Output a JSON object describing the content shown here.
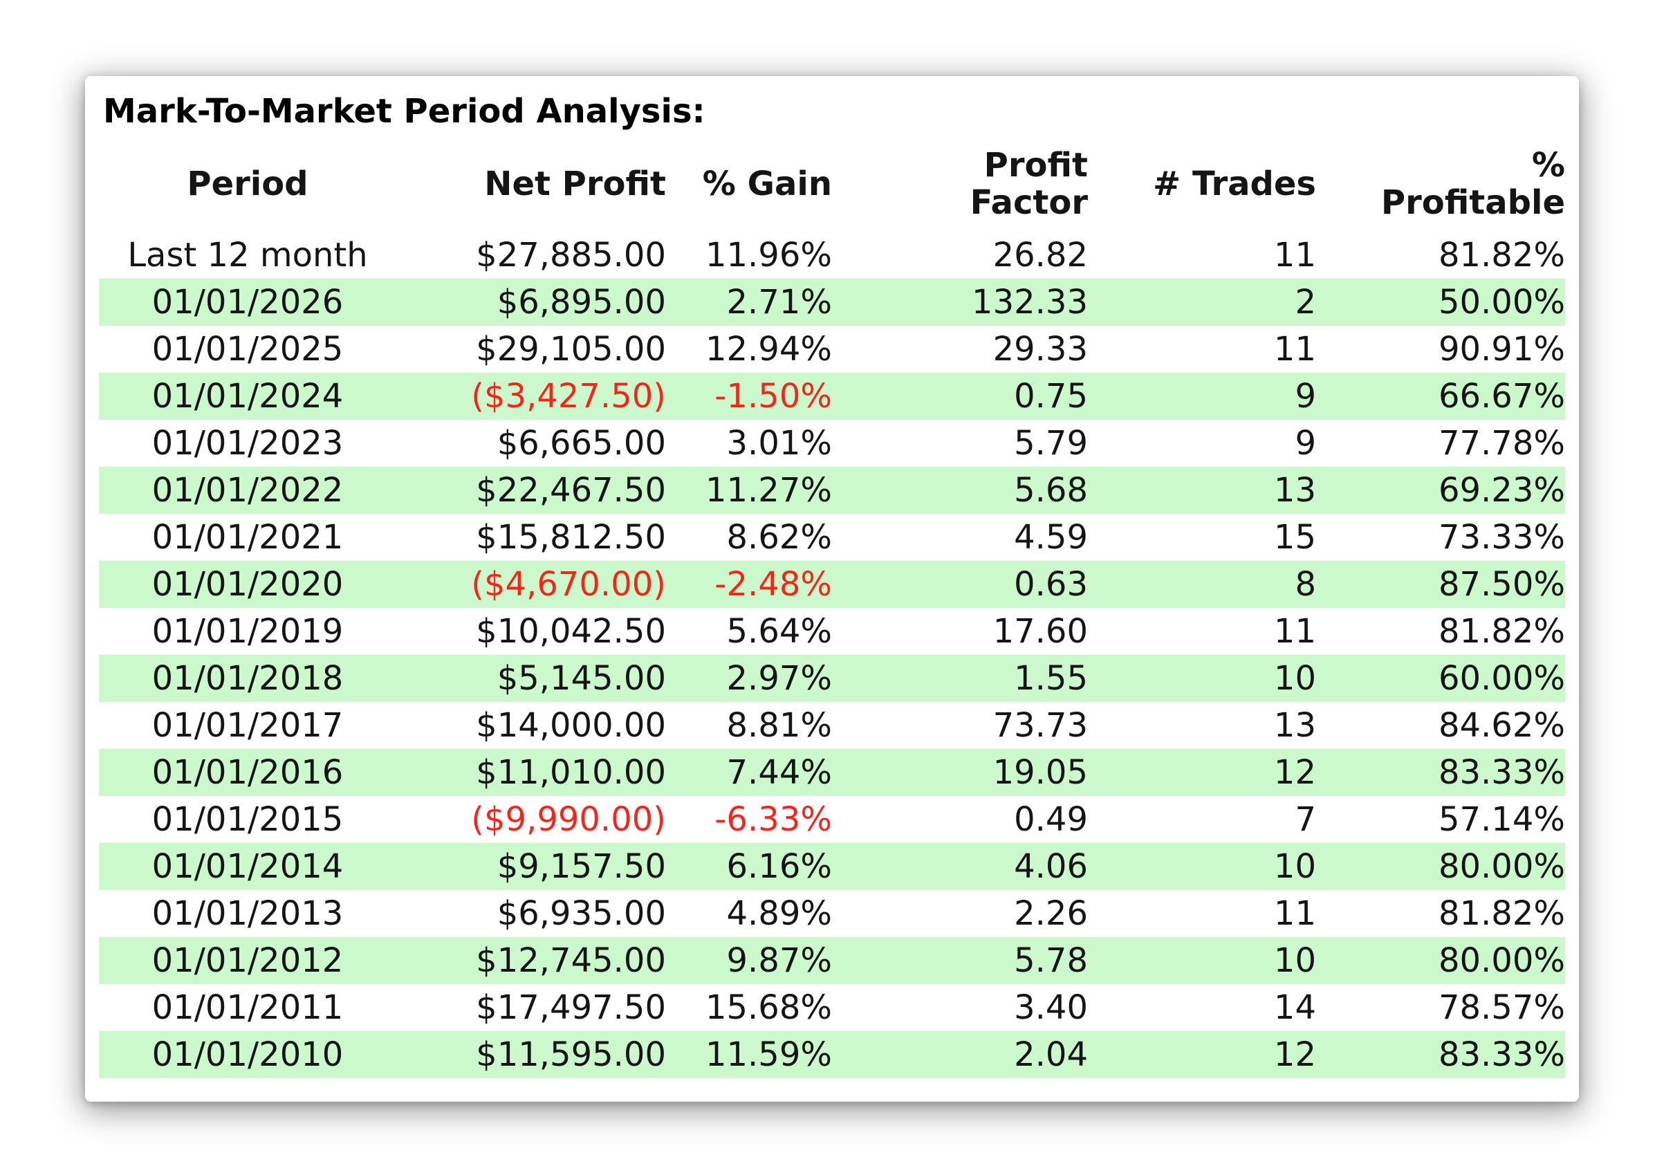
{
  "chart_data": {
    "type": "table",
    "title": "Mark-To-Market Period Analysis:",
    "columns": [
      {
        "key": "period",
        "label": "Period",
        "align": "center"
      },
      {
        "key": "net_profit",
        "label": "Net Profit",
        "align": "right"
      },
      {
        "key": "pct_gain",
        "label": "% Gain",
        "align": "right"
      },
      {
        "key": "profit_factor",
        "label": "Profit\nFactor",
        "align": "right"
      },
      {
        "key": "num_trades",
        "label": "# Trades",
        "align": "right"
      },
      {
        "key": "pct_profitable",
        "label": "%\nProfitable",
        "align": "right"
      }
    ],
    "rows": [
      {
        "period": "Last 12 month",
        "net_profit": "$27,885.00",
        "pct_gain": "11.96%",
        "profit_factor": "26.82",
        "num_trades": "11",
        "pct_profitable": "81.82%",
        "highlight": false,
        "negative": false
      },
      {
        "period": "01/01/2026",
        "net_profit": "$6,895.00",
        "pct_gain": "2.71%",
        "profit_factor": "132.33",
        "num_trades": "2",
        "pct_profitable": "50.00%",
        "highlight": true,
        "negative": false
      },
      {
        "period": "01/01/2025",
        "net_profit": "$29,105.00",
        "pct_gain": "12.94%",
        "profit_factor": "29.33",
        "num_trades": "11",
        "pct_profitable": "90.91%",
        "highlight": false,
        "negative": false
      },
      {
        "period": "01/01/2024",
        "net_profit": "($3,427.50)",
        "pct_gain": "-1.50%",
        "profit_factor": "0.75",
        "num_trades": "9",
        "pct_profitable": "66.67%",
        "highlight": true,
        "negative": true
      },
      {
        "period": "01/01/2023",
        "net_profit": "$6,665.00",
        "pct_gain": "3.01%",
        "profit_factor": "5.79",
        "num_trades": "9",
        "pct_profitable": "77.78%",
        "highlight": false,
        "negative": false
      },
      {
        "period": "01/01/2022",
        "net_profit": "$22,467.50",
        "pct_gain": "11.27%",
        "profit_factor": "5.68",
        "num_trades": "13",
        "pct_profitable": "69.23%",
        "highlight": true,
        "negative": false
      },
      {
        "period": "01/01/2021",
        "net_profit": "$15,812.50",
        "pct_gain": "8.62%",
        "profit_factor": "4.59",
        "num_trades": "15",
        "pct_profitable": "73.33%",
        "highlight": false,
        "negative": false
      },
      {
        "period": "01/01/2020",
        "net_profit": "($4,670.00)",
        "pct_gain": "-2.48%",
        "profit_factor": "0.63",
        "num_trades": "8",
        "pct_profitable": "87.50%",
        "highlight": true,
        "negative": true
      },
      {
        "period": "01/01/2019",
        "net_profit": "$10,042.50",
        "pct_gain": "5.64%",
        "profit_factor": "17.60",
        "num_trades": "11",
        "pct_profitable": "81.82%",
        "highlight": false,
        "negative": false
      },
      {
        "period": "01/01/2018",
        "net_profit": "$5,145.00",
        "pct_gain": "2.97%",
        "profit_factor": "1.55",
        "num_trades": "10",
        "pct_profitable": "60.00%",
        "highlight": true,
        "negative": false
      },
      {
        "period": "01/01/2017",
        "net_profit": "$14,000.00",
        "pct_gain": "8.81%",
        "profit_factor": "73.73",
        "num_trades": "13",
        "pct_profitable": "84.62%",
        "highlight": false,
        "negative": false
      },
      {
        "period": "01/01/2016",
        "net_profit": "$11,010.00",
        "pct_gain": "7.44%",
        "profit_factor": "19.05",
        "num_trades": "12",
        "pct_profitable": "83.33%",
        "highlight": true,
        "negative": false
      },
      {
        "period": "01/01/2015",
        "net_profit": "($9,990.00)",
        "pct_gain": "-6.33%",
        "profit_factor": "0.49",
        "num_trades": "7",
        "pct_profitable": "57.14%",
        "highlight": false,
        "negative": true
      },
      {
        "period": "01/01/2014",
        "net_profit": "$9,157.50",
        "pct_gain": "6.16%",
        "profit_factor": "4.06",
        "num_trades": "10",
        "pct_profitable": "80.00%",
        "highlight": true,
        "negative": false
      },
      {
        "period": "01/01/2013",
        "net_profit": "$6,935.00",
        "pct_gain": "4.89%",
        "profit_factor": "2.26",
        "num_trades": "11",
        "pct_profitable": "81.82%",
        "highlight": false,
        "negative": false
      },
      {
        "period": "01/01/2012",
        "net_profit": "$12,745.00",
        "pct_gain": "9.87%",
        "profit_factor": "5.78",
        "num_trades": "10",
        "pct_profitable": "80.00%",
        "highlight": true,
        "negative": false
      },
      {
        "period": "01/01/2011",
        "net_profit": "$17,497.50",
        "pct_gain": "15.68%",
        "profit_factor": "3.40",
        "num_trades": "14",
        "pct_profitable": "78.57%",
        "highlight": false,
        "negative": false
      },
      {
        "period": "01/01/2010",
        "net_profit": "$11,595.00",
        "pct_gain": "11.59%",
        "profit_factor": "2.04",
        "num_trades": "12",
        "pct_profitable": "83.33%",
        "highlight": true,
        "negative": false
      }
    ]
  },
  "colors": {
    "highlight_row_background": "#ccf9cc",
    "negative_value_text": "#f8241a",
    "text": "#151515"
  }
}
